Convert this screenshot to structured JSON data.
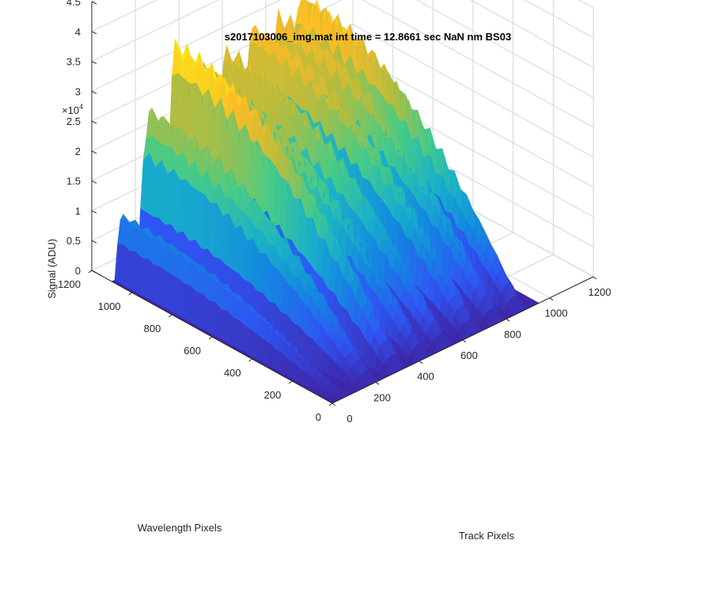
{
  "chart_data": {
    "type": "surface",
    "title": "s2017103006_img.mat int time = 12.8661 sec  NaN nm BS03",
    "xlabel": "Track Pixels",
    "ylabel": "Wavelength Pixels",
    "zlabel": "Signal (ADU)",
    "z_exponent_label": "×10",
    "z_exponent_power": "4",
    "xlim": [
      0,
      1200
    ],
    "ylim": [
      0,
      1200
    ],
    "zlim": [
      0,
      45000
    ],
    "x_ticks": [
      "0",
      "200",
      "400",
      "600",
      "800",
      "1000",
      "1200"
    ],
    "y_ticks": [
      "0",
      "200",
      "400",
      "600",
      "800",
      "1000",
      "1200"
    ],
    "z_ticks": [
      "0",
      "0.5",
      "1",
      "1.5",
      "2",
      "2.5",
      "3",
      "3.5",
      "4",
      "4.5"
    ],
    "grid": true,
    "colormap": [
      "#3e26a8",
      "#2e56f4",
      "#1488e0",
      "#1ab1c8",
      "#48cb86",
      "#b8bc3c",
      "#fabb27",
      "#f9fb0e"
    ],
    "series": [
      {
        "track_center": 50,
        "width": 60,
        "peak": 10200,
        "wavelength_range": [
          0,
          1100
        ]
      },
      {
        "track_center": 175,
        "width": 95,
        "peak": 24500,
        "wavelength_range": [
          0,
          1100
        ]
      },
      {
        "track_center": 300,
        "width": 90,
        "peak": 34500,
        "wavelength_range": [
          0,
          1100
        ]
      },
      {
        "track_center": 420,
        "width": 80,
        "peak": 27500,
        "wavelength_range": [
          0,
          1100
        ]
      },
      {
        "track_center": 520,
        "width": 80,
        "peak": 28500,
        "wavelength_range": [
          0,
          1100
        ]
      },
      {
        "track_center": 650,
        "width": 95,
        "peak": 31000,
        "wavelength_range": [
          0,
          1100
        ]
      },
      {
        "track_center": 760,
        "width": 80,
        "peak": 30000,
        "wavelength_range": [
          0,
          1100
        ]
      },
      {
        "track_center": 860,
        "width": 85,
        "peak": 32000,
        "wavelength_range": [
          0,
          1100
        ]
      }
    ]
  }
}
